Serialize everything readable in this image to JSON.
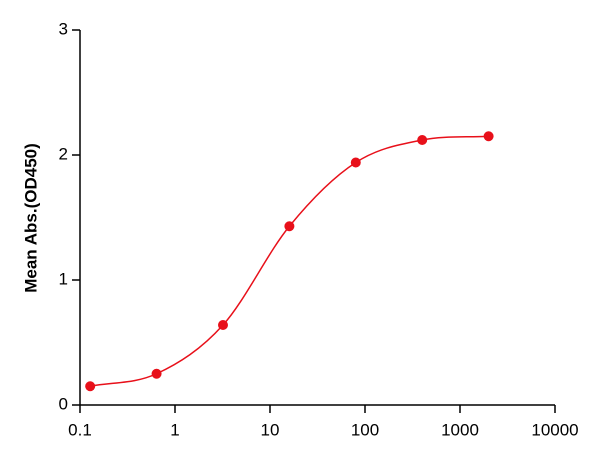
{
  "chart_data": {
    "type": "scatter",
    "y_label": "Mean Abs.(OD450)",
    "x": [
      0.128,
      0.64,
      3.2,
      16,
      80,
      400,
      2000
    ],
    "values": [
      0.15,
      0.25,
      0.64,
      1.43,
      1.94,
      2.12,
      2.15
    ],
    "color": "#e8101a",
    "fit_line": true,
    "x_log": true,
    "xlim": [
      0.1,
      10000
    ],
    "xticks": [
      0.1,
      1,
      10,
      100,
      1000,
      10000
    ],
    "ylim": [
      0,
      3
    ],
    "yticks": [
      0,
      1,
      2,
      3
    ],
    "grid": false
  }
}
